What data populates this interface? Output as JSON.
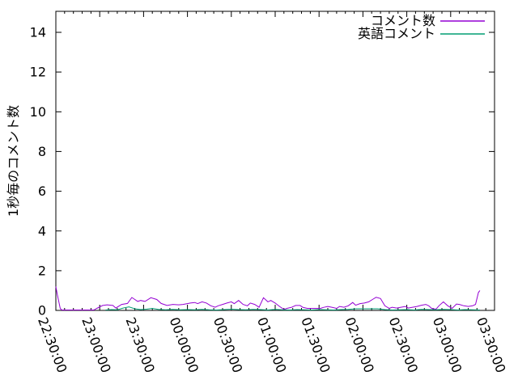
{
  "figure": {
    "background_color": "#ffffff",
    "axis_color": "#000000",
    "text_color": "#000000"
  },
  "chart_data": {
    "type": "line",
    "title": "",
    "xlabel": "",
    "ylabel": "1秒毎のコメント数",
    "grid": false,
    "legend_position": "top-right",
    "ylim": [
      0,
      15
    ],
    "y_ticks": [
      0,
      2,
      4,
      6,
      8,
      10,
      12,
      14
    ],
    "x_range_minutes": [
      0,
      300
    ],
    "x_major_tick_interval_minutes": 30,
    "x_minor_tick_interval_minutes": 6,
    "x_tick_labels": [
      "22:30:00",
      "23:00:00",
      "23:30:00",
      "00:00:00",
      "00:30:00",
      "01:00:00",
      "01:30:00",
      "02:00:00",
      "02:30:00",
      "03:00:00",
      "03:30:00"
    ],
    "series": [
      {
        "name": "コメント数",
        "color": "#9400d3",
        "x_minutes": [
          0,
          1,
          3,
          4,
          10,
          16,
          22,
          26,
          28,
          32,
          35,
          39,
          41,
          45,
          49,
          52,
          54,
          56,
          58,
          61,
          65,
          69,
          72,
          76,
          80,
          84,
          87,
          92,
          95,
          97,
          100,
          103,
          106,
          109,
          111,
          114,
          117,
          120,
          122,
          125,
          128,
          131,
          133,
          136,
          139,
          142,
          145,
          147,
          150,
          153,
          156,
          158,
          161,
          164,
          167,
          169,
          172,
          175,
          178,
          181,
          183,
          186,
          189,
          192,
          194,
          197,
          200,
          203,
          205,
          208,
          211,
          214,
          217,
          219,
          222,
          225,
          228,
          230,
          233,
          236,
          239,
          241,
          244,
          247,
          250,
          253,
          255,
          257,
          260,
          262,
          265,
          268,
          271,
          274,
          276,
          279,
          282,
          285,
          287,
          289,
          290
        ],
        "y": [
          1.2,
          0.8,
          0.1,
          0.02,
          0.02,
          0.02,
          0.02,
          0.02,
          0.1,
          0.25,
          0.28,
          0.25,
          0.12,
          0.3,
          0.35,
          0.65,
          0.55,
          0.45,
          0.5,
          0.45,
          0.64,
          0.55,
          0.35,
          0.25,
          0.3,
          0.28,
          0.3,
          0.37,
          0.4,
          0.34,
          0.43,
          0.37,
          0.23,
          0.16,
          0.23,
          0.3,
          0.37,
          0.43,
          0.34,
          0.5,
          0.3,
          0.23,
          0.37,
          0.3,
          0.16,
          0.64,
          0.43,
          0.5,
          0.37,
          0.2,
          0.05,
          0.1,
          0.15,
          0.25,
          0.25,
          0.15,
          0.1,
          0.1,
          0.1,
          0.1,
          0.15,
          0.2,
          0.15,
          0.1,
          0.2,
          0.16,
          0.23,
          0.4,
          0.26,
          0.34,
          0.37,
          0.43,
          0.57,
          0.66,
          0.6,
          0.23,
          0.1,
          0.16,
          0.12,
          0.16,
          0.2,
          0.12,
          0.16,
          0.2,
          0.26,
          0.3,
          0.23,
          0.1,
          0.06,
          0.23,
          0.43,
          0.23,
          0.1,
          0.32,
          0.3,
          0.23,
          0.2,
          0.23,
          0.3,
          0.9,
          1.0
        ]
      },
      {
        "name": "英語コメント",
        "color": "#009e73",
        "x_minutes": [
          34,
          38,
          42,
          46,
          50,
          54,
          58,
          62,
          66,
          70,
          75,
          80,
          85,
          90,
          95,
          100,
          105,
          110,
          115,
          120,
          125,
          130,
          135,
          140,
          145,
          150,
          155,
          160,
          165,
          170,
          175,
          180,
          185,
          190,
          195,
          200,
          205,
          210,
          215,
          220,
          225,
          230,
          235,
          240,
          245,
          250,
          255,
          260,
          265,
          270,
          275,
          280,
          285,
          290
        ],
        "y": [
          0.02,
          0.04,
          0.03,
          0.12,
          0.18,
          0.08,
          0.04,
          0.06,
          0.1,
          0.05,
          0.03,
          0.05,
          0.03,
          0.04,
          0.03,
          0.05,
          0.03,
          0.02,
          0.04,
          0.06,
          0.04,
          0.03,
          0.05,
          0.04,
          0.02,
          0.05,
          0.03,
          0.02,
          0.04,
          0.03,
          0.02,
          0.04,
          0.03,
          0.02,
          0.04,
          0.05,
          0.08,
          0.08,
          0.08,
          0.08,
          0.04,
          0.02,
          0.03,
          0.04,
          0.02,
          0.05,
          0.04,
          0.03,
          0.05,
          0.04,
          0.02,
          0.04,
          0.03,
          0.02
        ]
      }
    ]
  }
}
